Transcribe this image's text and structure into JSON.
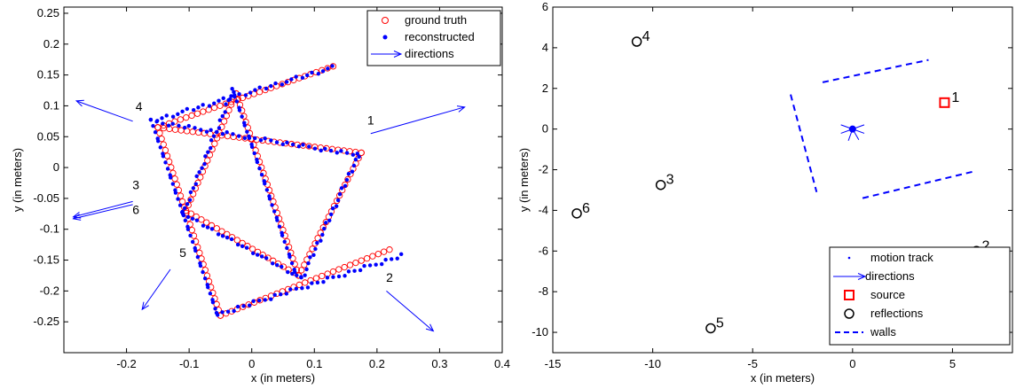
{
  "chart_data": [
    {
      "type": "scatter",
      "title": "",
      "xlabel": "x (in meters)",
      "ylabel": "y (in meters)",
      "xlim": [
        -0.3,
        0.4
      ],
      "ylim": [
        -0.3,
        0.26
      ],
      "xticks": [
        "-0.2",
        "-0.1",
        "0",
        "0.1",
        "0.2",
        "0.3",
        "0.4"
      ],
      "yticks": [
        "-0.25",
        "-0.2",
        "-0.15",
        "-0.1",
        "-0.05",
        "0",
        "0.05",
        "0.1",
        "0.15",
        "0.2",
        "0.25"
      ],
      "legend": {
        "placement": "top-right",
        "entries": [
          {
            "label": "ground truth",
            "marker": "circle-open",
            "color": "#ff0000"
          },
          {
            "label": "reconstructed",
            "marker": "dot",
            "color": "#0000ff"
          },
          {
            "label": "directions",
            "marker": "arrow",
            "color": "#0000ff"
          }
        ]
      },
      "series": [
        {
          "name": "ground truth",
          "color": "#ff0000",
          "path": [
            [
              0.13,
              0.164
            ],
            [
              -0.15,
              0.065
            ],
            [
              -0.05,
              -0.24
            ],
            [
              0.22,
              -0.133
            ]
          ],
          "extra_segments": [
            [
              [
                -0.15,
                0.065
              ],
              [
                0.175,
                0.024
              ]
            ],
            [
              [
                0.175,
                0.024
              ],
              [
                0.075,
                -0.175
              ]
            ],
            [
              [
                0.075,
                -0.175
              ],
              [
                -0.105,
                -0.07
              ]
            ],
            [
              [
                -0.105,
                -0.07
              ],
              [
                -0.025,
                0.12
              ]
            ],
            [
              [
                -0.025,
                0.12
              ],
              [
                0.075,
                -0.175
              ]
            ]
          ]
        },
        {
          "name": "reconstructed",
          "color": "#0000ff",
          "path": [
            [
              0.13,
              0.162
            ],
            [
              -0.16,
              0.075
            ],
            [
              -0.055,
              -0.238
            ],
            [
              0.24,
              -0.143
            ]
          ],
          "extra_segments": [
            [
              [
                -0.16,
                0.075
              ],
              [
                0.17,
                0.02
              ]
            ],
            [
              [
                0.17,
                0.02
              ],
              [
                0.08,
                -0.18
              ]
            ],
            [
              [
                0.08,
                -0.18
              ],
              [
                -0.11,
                -0.075
              ]
            ],
            [
              [
                -0.11,
                -0.075
              ],
              [
                -0.03,
                0.125
              ]
            ],
            [
              [
                -0.03,
                0.125
              ],
              [
                0.07,
                -0.172
              ]
            ]
          ]
        }
      ],
      "directions": [
        {
          "label": "1",
          "from": [
            0.19,
            0.055
          ],
          "to": [
            0.34,
            0.098
          ]
        },
        {
          "label": "2",
          "from": [
            0.215,
            -0.2
          ],
          "to": [
            0.29,
            -0.265
          ]
        },
        {
          "label": "3",
          "from": [
            -0.19,
            -0.055
          ],
          "to": [
            -0.285,
            -0.08
          ]
        },
        {
          "label": "4",
          "from": [
            -0.19,
            0.075
          ],
          "to": [
            -0.28,
            0.108
          ]
        },
        {
          "label": "5",
          "from": [
            -0.13,
            -0.165
          ],
          "to": [
            -0.175,
            -0.23
          ]
        },
        {
          "label": "6",
          "from": [
            -0.19,
            -0.06
          ],
          "to": [
            -0.285,
            -0.083
          ]
        }
      ],
      "direction_labels": [
        {
          "text": "1",
          "x": 0.19,
          "y": 0.07
        },
        {
          "text": "2",
          "x": 0.22,
          "y": -0.185
        },
        {
          "text": "3",
          "x": -0.185,
          "y": -0.035
        },
        {
          "text": "4",
          "x": -0.18,
          "y": 0.092
        },
        {
          "text": "5",
          "x": -0.11,
          "y": -0.145
        },
        {
          "text": "6",
          "x": -0.185,
          "y": -0.075
        }
      ]
    },
    {
      "type": "scatter",
      "title": "",
      "xlabel": "x (in meters)",
      "ylabel": "y (in meters)",
      "xlim": [
        -15,
        8
      ],
      "ylim": [
        -11,
        6
      ],
      "xticks": [
        "-15",
        "-10",
        "-5",
        "0",
        "5"
      ],
      "yticks": [
        "-10",
        "-8",
        "-6",
        "-4",
        "-2",
        "0",
        "2",
        "4",
        "6"
      ],
      "legend": {
        "placement": "bottom-right",
        "entries": [
          {
            "label": "motion track",
            "marker": "dot",
            "color": "#0000ff"
          },
          {
            "label": "directions",
            "marker": "arrow",
            "color": "#0000ff"
          },
          {
            "label": "source",
            "marker": "square",
            "color": "#ff0000"
          },
          {
            "label": "reflections",
            "marker": "circle",
            "color": "#000000"
          },
          {
            "label": "walls",
            "marker": "dash",
            "color": "#0000ff"
          }
        ]
      },
      "source": {
        "label": "1",
        "x": 4.6,
        "y": 1.3
      },
      "reflections": [
        {
          "label": "2",
          "x": 6.2,
          "y": -6.0
        },
        {
          "label": "3",
          "x": -9.6,
          "y": -2.75
        },
        {
          "label": "4",
          "x": -10.8,
          "y": 4.3
        },
        {
          "label": "5",
          "x": -7.1,
          "y": -9.8
        },
        {
          "label": "6",
          "x": -13.8,
          "y": -4.15
        }
      ],
      "walls": [
        [
          [
            -1.5,
            2.3
          ],
          [
            3.8,
            3.4
          ]
        ],
        [
          [
            -3.1,
            1.7
          ],
          [
            -1.8,
            -3.1
          ]
        ],
        [
          [
            0.5,
            -3.4
          ],
          [
            6.0,
            -2.1
          ]
        ]
      ],
      "motion_track": {
        "x": 0,
        "y": 0
      }
    }
  ]
}
